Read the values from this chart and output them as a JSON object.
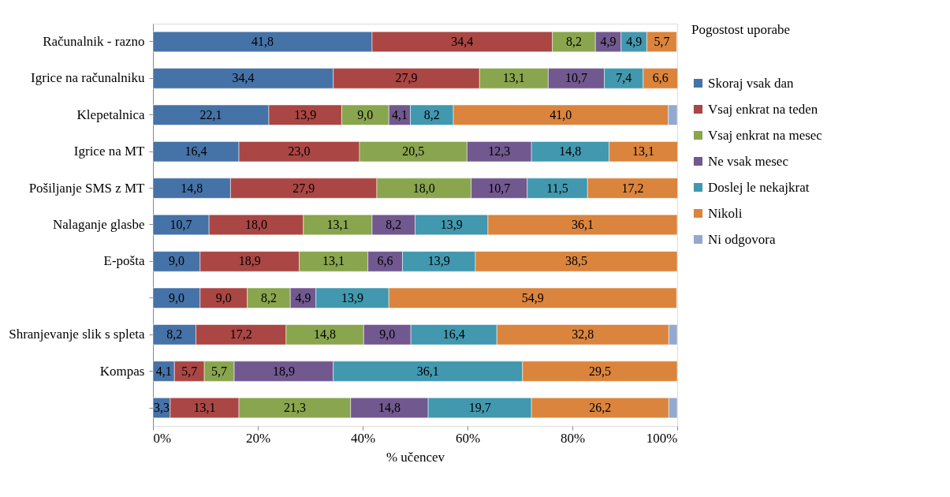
{
  "chart_data": {
    "type": "bar",
    "orientation": "horizontal",
    "stacked": true,
    "xlabel": "% učencev",
    "legend_title": "Pogostost uporabe",
    "legend": "right",
    "grid": false,
    "categories": [
      "Računalnik - razno",
      "Igrice na računalniku",
      "Klepetalnica",
      "Igrice na MT",
      "Pošiljanje SMS z MT",
      "Nalaganje glasbe",
      "E-pošta",
      null,
      "Shranjevanje slik s spleta",
      "Kompas",
      null
    ],
    "xlim": [
      0,
      100
    ],
    "xticks": [
      {
        "value": 0,
        "label": "0%"
      },
      {
        "value": 20,
        "label": "20%"
      },
      {
        "value": 40,
        "label": "40%"
      },
      {
        "value": 60,
        "label": "60%"
      },
      {
        "value": 80,
        "label": "80%"
      },
      {
        "value": 100,
        "label": "100%"
      }
    ],
    "series": [
      {
        "name": "Skoraj vsak dan",
        "color": "#4572a7",
        "values": [
          41.8,
          34.4,
          22.1,
          16.4,
          14.8,
          10.7,
          9.0,
          9.0,
          8.2,
          4.1,
          3.3
        ],
        "value_labels": [
          "41,8",
          "34,4",
          "22,1",
          "16,4",
          "14,8",
          "10,7",
          "9,0",
          "9,0",
          "8,2",
          "4,1",
          "3,3"
        ]
      },
      {
        "name": "Vsaj enkrat na teden",
        "color": "#aa4643",
        "values": [
          34.4,
          27.9,
          13.9,
          23.0,
          27.9,
          18.0,
          18.9,
          9.0,
          17.2,
          5.7,
          13.1
        ],
        "value_labels": [
          "34,4",
          "27,9",
          "13,9",
          "23,0",
          "27,9",
          "18,0",
          "18,9",
          "9,0",
          "17,2",
          "5,7",
          "13,1"
        ]
      },
      {
        "name": "Vsaj enkrat na mesec",
        "color": "#89a54e",
        "values": [
          8.2,
          13.1,
          9.0,
          20.5,
          18.0,
          13.1,
          13.1,
          8.2,
          14.8,
          5.7,
          21.3
        ],
        "value_labels": [
          "8,2",
          "13,1",
          "9,0",
          "20,5",
          "18,0",
          "13,1",
          "13,1",
          "8,2",
          "14,8",
          "5,7",
          "21,3"
        ]
      },
      {
        "name": "Ne vsak mesec",
        "color": "#71588f",
        "values": [
          4.9,
          10.7,
          4.1,
          12.3,
          10.7,
          8.2,
          6.6,
          4.9,
          9.0,
          18.9,
          14.8
        ],
        "value_labels": [
          "4,9",
          "10,7",
          "4,1",
          "12,3",
          "10,7",
          "8,2",
          "6,6",
          "4,9",
          "9,0",
          "18,9",
          "14,8"
        ]
      },
      {
        "name": "Doslej le nekajkrat",
        "color": "#4198af",
        "values": [
          4.9,
          7.4,
          8.2,
          14.8,
          11.5,
          13.9,
          13.9,
          13.9,
          16.4,
          36.1,
          19.7
        ],
        "value_labels": [
          "4,9",
          "7,4",
          "8,2",
          "14,8",
          "11,5",
          "13,9",
          "13,9",
          "13,9",
          "16,4",
          "36,1",
          "19,7"
        ]
      },
      {
        "name": "Nikoli",
        "color": "#db843d",
        "values": [
          5.7,
          6.6,
          41.0,
          13.1,
          17.2,
          36.1,
          38.5,
          54.9,
          32.8,
          29.5,
          26.2
        ],
        "value_labels": [
          "5,7",
          "6,6",
          "41,0",
          "13,1",
          "17,2",
          "36,1",
          "38,5",
          "54,9",
          "32,8",
          "29,5",
          "26,2"
        ]
      },
      {
        "name": "Ni odgovora",
        "color": "#93a9cf",
        "values": [
          null,
          null,
          1.7,
          null,
          null,
          null,
          null,
          null,
          1.6,
          null,
          1.6
        ],
        "value_labels": [
          null,
          null,
          null,
          null,
          null,
          null,
          null,
          null,
          null,
          null,
          null
        ]
      }
    ]
  }
}
